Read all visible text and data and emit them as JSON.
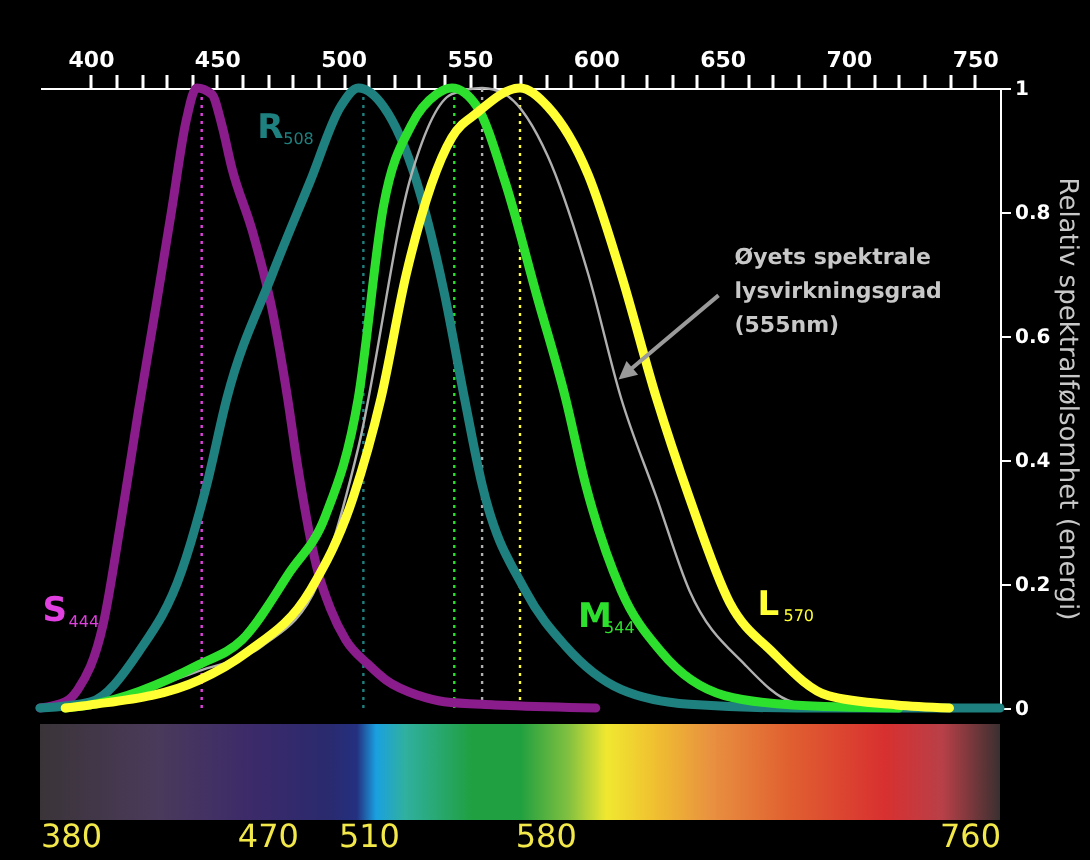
{
  "chart_data": {
    "type": "line",
    "ylabel": "Relativ spektralfølsomhet (energi)",
    "xlim": [
      380,
      760
    ],
    "xticks": [
      380,
      470,
      510,
      580,
      760
    ],
    "x2lim": [
      380,
      760
    ],
    "x2ticks": [
      400,
      {
        "value": 410,
        "label": null
      },
      {
        "value": 420,
        "label": null
      },
      {
        "value": 430,
        "label": null
      },
      {
        "value": 440,
        "label": null
      },
      450,
      {
        "value": 460,
        "label": null
      },
      {
        "value": 470,
        "label": null
      },
      {
        "value": 480,
        "label": null
      },
      {
        "value": 490,
        "label": null
      },
      500,
      {
        "value": 510,
        "label": null
      },
      {
        "value": 520,
        "label": null
      },
      {
        "value": 530,
        "label": null
      },
      {
        "value": 540,
        "label": null
      },
      550,
      {
        "value": 560,
        "label": null
      },
      {
        "value": 570,
        "label": null
      },
      {
        "value": 580,
        "label": null
      },
      {
        "value": 590,
        "label": null
      },
      600,
      {
        "value": 610,
        "label": null
      },
      {
        "value": 620,
        "label": null
      },
      {
        "value": 630,
        "label": null
      },
      {
        "value": 640,
        "label": null
      },
      650,
      {
        "value": 660,
        "label": null
      },
      {
        "value": 670,
        "label": null
      },
      {
        "value": 680,
        "label": null
      },
      {
        "value": 690,
        "label": null
      },
      700,
      {
        "value": 710,
        "label": null
      },
      {
        "value": 720,
        "label": null
      },
      {
        "value": 730,
        "label": null
      },
      {
        "value": 740,
        "label": null
      },
      750
    ],
    "ylim": [
      0,
      1
    ],
    "yticks": [
      0,
      0.2,
      0.4,
      0.6,
      0.8,
      1
    ],
    "grid": false,
    "legend": false,
    "marker": "none",
    "line_style": "solid",
    "series": [
      {
        "name": "S$_{444}$",
        "color": "#8b1c8b",
        "x": [
          380,
          390,
          395,
          405,
          412,
          419,
          426,
          432,
          438,
          442,
          448,
          452,
          456,
          464,
          472,
          478,
          482,
          490,
          495,
          501,
          510,
          517,
          530,
          540,
          560,
          600
        ],
        "values": [
          0,
          0.01,
          0.03,
          0.135,
          0.3,
          0.48,
          0.65,
          0.8,
          0.95,
          1.0,
          0.99,
          0.94,
          0.87,
          0.77,
          0.64,
          0.5,
          0.39,
          0.22,
          0.16,
          0.11,
          0.07,
          0.045,
          0.02,
          0.01,
          0.005,
          0
        ]
      },
      {
        "name": "R$_{508}$",
        "color": "#1f8080",
        "x": [
          380,
          400,
          419,
          436,
          446,
          454,
          472,
          487,
          499,
          506,
          516,
          529,
          540,
          548,
          555,
          572,
          588,
          610,
          637,
          680,
          760
        ],
        "values": [
          0,
          0.01,
          0.09,
          0.22,
          0.36,
          0.5,
          0.7,
          0.85,
          0.97,
          1.0,
          0.97,
          0.85,
          0.67,
          0.5,
          0.36,
          0.19,
          0.1,
          0.03,
          0.006,
          0,
          0
        ]
      },
      {
        "color": "#b0b0b0",
        "x": [
          400,
          443,
          468,
          490,
          506,
          527,
          543,
          555,
          564,
          581,
          597,
          610,
          624,
          637,
          659,
          678,
          700
        ],
        "values": [
          0,
          0.06,
          0.1,
          0.2,
          0.42,
          0.86,
          0.99,
          1.0,
          0.99,
          0.89,
          0.7,
          0.5,
          0.34,
          0.19,
          0.07,
          0.01,
          0
        ]
      },
      {
        "name": "M$_{544}$",
        "color": "#2ee02e",
        "x": [
          390,
          400,
          443,
          460,
          479,
          493,
          506,
          516,
          527,
          537,
          543,
          553,
          564,
          577,
          588,
          596,
          610,
          626,
          651,
          678,
          720
        ],
        "values": [
          0,
          0.005,
          0.07,
          0.11,
          0.22,
          0.31,
          0.5,
          0.81,
          0.94,
          0.99,
          1.0,
          0.97,
          0.85,
          0.66,
          0.5,
          0.36,
          0.19,
          0.09,
          0.02,
          0.005,
          0
        ]
      },
      {
        "name": "L$_{570}$",
        "color": "#ffff33",
        "x": [
          390,
          400,
          443,
          462,
          487,
          504,
          515,
          525,
          543,
          553,
          570,
          581,
          597,
          610,
          624,
          637,
          653,
          670,
          692,
          719,
          740
        ],
        "values": [
          0,
          0.005,
          0.045,
          0.09,
          0.19,
          0.34,
          0.5,
          0.7,
          0.92,
          0.96,
          1.0,
          0.97,
          0.86,
          0.7,
          0.5,
          0.34,
          0.17,
          0.09,
          0.02,
          0.005,
          0
        ]
      }
    ],
    "ref_lines": [
      {
        "axis": "x",
        "value": 444,
        "color": "#e040e0",
        "line_style": "dotted"
      },
      {
        "axis": "x",
        "value": 508,
        "color": "#1f8080",
        "line_style": "dotted"
      },
      {
        "axis": "x",
        "value": 544,
        "color": "#2ee02e",
        "line_style": "dotted"
      },
      {
        "axis": "x",
        "value": 555,
        "color": "#b0b0b0",
        "line_style": "dotted"
      },
      {
        "axis": "x",
        "value": 570,
        "color": "#ffff33",
        "line_style": "dotted"
      }
    ],
    "annotations": [
      {
        "text": "Øyets spektrale lysvirkningsgrad (555nm)",
        "x": 609,
        "y": 0.53
      }
    ]
  }
}
